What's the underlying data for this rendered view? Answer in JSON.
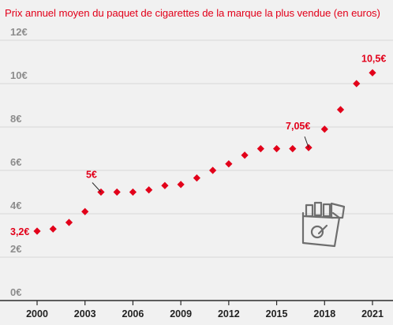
{
  "colors": {
    "accent": "#e2001a",
    "background": "#f1f1f1"
  },
  "chart_data": {
    "type": "scatter",
    "title": "Prix annuel moyen du paquet de cigarettes de la marque la plus vendue (en euros)",
    "xlabel": "",
    "ylabel": "",
    "xlim": [
      2000,
      2021
    ],
    "ylim": [
      0,
      12
    ],
    "x_ticks": [
      "2000",
      "2003",
      "2006",
      "2009",
      "2012",
      "2015",
      "2018",
      "2021"
    ],
    "y_ticks": [
      "0€",
      "2€",
      "4€",
      "6€",
      "8€",
      "10€",
      "12€"
    ],
    "grid": true,
    "series": [
      {
        "x": [
          2000,
          2001,
          2002,
          2003,
          2004,
          2005,
          2006,
          2007,
          2008,
          2009,
          2010,
          2011,
          2012,
          2013,
          2014,
          2015,
          2016,
          2017,
          2018,
          2019,
          2020,
          2021
        ],
        "values": [
          3.2,
          3.3,
          3.6,
          4.1,
          5.0,
          5.0,
          5.0,
          5.1,
          5.3,
          5.35,
          5.65,
          6.0,
          6.3,
          6.7,
          7.0,
          7.0,
          7.0,
          7.05,
          7.9,
          8.8,
          10.0,
          10.5
        ]
      }
    ],
    "annotations": [
      {
        "x": 2000,
        "y": 3.2,
        "label": "3,2€"
      },
      {
        "x": 2004,
        "y": 5.0,
        "label": "5€"
      },
      {
        "x": 2017,
        "y": 7.05,
        "label": "7,05€"
      },
      {
        "x": 2021,
        "y": 10.5,
        "label": "10,5€"
      }
    ],
    "decoration": "cigarette-pack-icon"
  }
}
